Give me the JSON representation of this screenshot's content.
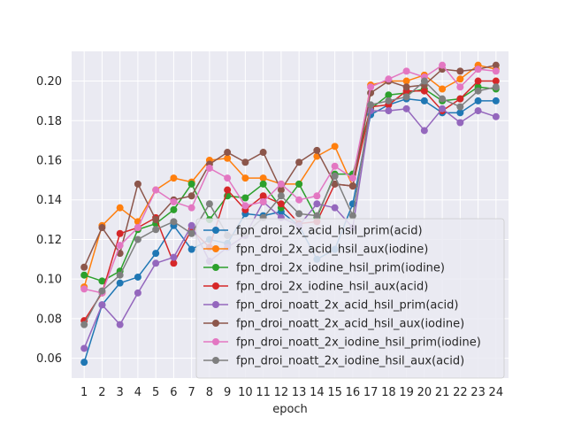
{
  "chart_data": {
    "type": "line",
    "title": "",
    "xlabel": "epoch",
    "ylabel": "",
    "x": [
      1,
      2,
      3,
      4,
      5,
      6,
      7,
      8,
      9,
      10,
      11,
      12,
      13,
      14,
      15,
      16,
      17,
      18,
      19,
      20,
      21,
      22,
      23,
      24
    ],
    "xlim": [
      0.3,
      24.7
    ],
    "ylim": [
      0.05,
      0.215
    ],
    "yticks": [
      0.06,
      0.08,
      0.1,
      0.12,
      0.14,
      0.16,
      0.18,
      0.2
    ],
    "ytick_labels": [
      "0.06",
      "0.08",
      "0.10",
      "0.12",
      "0.14",
      "0.16",
      "0.18",
      "0.20"
    ],
    "xtick_labels": [
      "1",
      "2",
      "3",
      "4",
      "5",
      "6",
      "7",
      "8",
      "9",
      "10",
      "11",
      "12",
      "13",
      "14",
      "15",
      "16",
      "17",
      "18",
      "19",
      "20",
      "21",
      "22",
      "23",
      "24"
    ],
    "grid": true,
    "background": "#eaeaf2",
    "legend_position": "lower-right",
    "series": [
      {
        "name": "fpn_droi_2x_acid_hsil_prim(acid)",
        "color": "#1f77b4",
        "values": [
          0.058,
          0.087,
          0.098,
          0.101,
          0.113,
          0.127,
          0.115,
          0.12,
          0.118,
          0.133,
          0.132,
          0.134,
          0.127,
          0.11,
          0.115,
          0.138,
          0.183,
          0.188,
          0.191,
          0.19,
          0.184,
          0.184,
          0.19,
          0.19
        ]
      },
      {
        "name": "fpn_droi_2x_acid_hsil_aux(iodine)",
        "color": "#ff7f0e",
        "values": [
          0.096,
          0.127,
          0.136,
          0.129,
          0.145,
          0.151,
          0.149,
          0.16,
          0.161,
          0.151,
          0.151,
          0.148,
          0.148,
          0.162,
          0.167,
          0.147,
          0.198,
          0.2,
          0.2,
          0.203,
          0.196,
          0.201,
          0.208,
          0.206
        ]
      },
      {
        "name": "fpn_droi_2x_iodine_hsil_prim(iodine)",
        "color": "#2ca02c",
        "values": [
          0.102,
          0.099,
          0.104,
          0.125,
          0.128,
          0.135,
          0.148,
          0.13,
          0.142,
          0.141,
          0.148,
          0.136,
          0.148,
          0.131,
          0.153,
          0.153,
          0.186,
          0.193,
          0.194,
          0.196,
          0.19,
          0.191,
          0.197,
          0.196
        ]
      },
      {
        "name": "fpn_droi_2x_iodine_hsil_aux(acid)",
        "color": "#d62728",
        "values": [
          0.079,
          0.093,
          0.123,
          0.126,
          0.131,
          0.108,
          0.125,
          0.116,
          0.145,
          0.135,
          0.142,
          0.138,
          0.128,
          0.129,
          0.148,
          0.147,
          0.187,
          0.188,
          0.195,
          0.195,
          0.185,
          0.191,
          0.2,
          0.2
        ]
      },
      {
        "name": "fpn_droi_noatt_2x_acid_hsil_prim(acid)",
        "color": "#9467bd",
        "values": [
          0.065,
          0.087,
          0.077,
          0.093,
          0.108,
          0.111,
          0.127,
          0.109,
          0.116,
          0.122,
          0.139,
          0.131,
          0.127,
          0.138,
          0.136,
          0.126,
          0.185,
          0.185,
          0.186,
          0.175,
          0.186,
          0.179,
          0.185,
          0.182
        ]
      },
      {
        "name": "fpn_droi_noatt_2x_acid_hsil_aux(iodine)",
        "color": "#8c564b",
        "values": [
          0.106,
          0.126,
          0.113,
          0.148,
          0.13,
          0.14,
          0.142,
          0.158,
          0.164,
          0.159,
          0.164,
          0.145,
          0.159,
          0.165,
          0.148,
          0.147,
          0.194,
          0.2,
          0.197,
          0.198,
          0.206,
          0.205,
          0.206,
          0.208
        ]
      },
      {
        "name": "fpn_droi_noatt_2x_iodine_hsil_prim(iodine)",
        "color": "#e377c2",
        "values": [
          0.095,
          0.093,
          0.117,
          0.126,
          0.145,
          0.139,
          0.136,
          0.156,
          0.151,
          0.137,
          0.139,
          0.148,
          0.14,
          0.142,
          0.157,
          0.151,
          0.197,
          0.201,
          0.205,
          0.202,
          0.208,
          0.197,
          0.206,
          0.205
        ]
      },
      {
        "name": "fpn_droi_noatt_2x_iodine_hsil_aux(acid)",
        "color": "#7f7f7f",
        "values": [
          0.077,
          0.094,
          0.102,
          0.12,
          0.125,
          0.129,
          0.123,
          0.138,
          0.122,
          0.123,
          0.131,
          0.142,
          0.133,
          0.132,
          0.152,
          0.132,
          0.188,
          0.19,
          0.192,
          0.2,
          0.191,
          0.187,
          0.195,
          0.197
        ]
      }
    ]
  }
}
